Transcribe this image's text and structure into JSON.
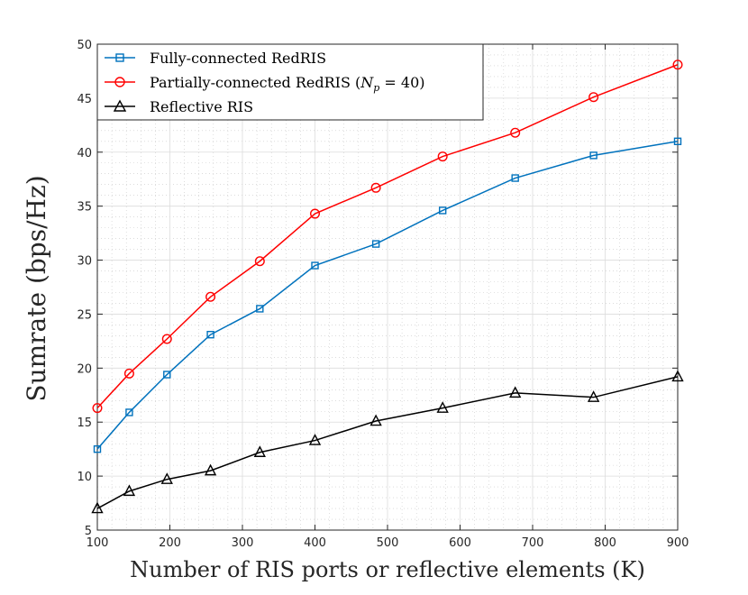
{
  "chart_data": {
    "type": "line",
    "xlabel": "Number of RIS ports or reflective elements (K)",
    "ylabel": "Sumrate (bps/Hz)",
    "xlim": [
      100,
      900
    ],
    "ylim": [
      5,
      50
    ],
    "xticks": [
      100,
      200,
      300,
      400,
      500,
      600,
      700,
      800,
      900
    ],
    "yticks": [
      5,
      10,
      15,
      20,
      25,
      30,
      35,
      40,
      45,
      50
    ],
    "grid": true,
    "minor_grid": true,
    "legend_position": "top-left",
    "x": [
      100,
      144,
      196,
      256,
      324,
      400,
      484,
      576,
      676,
      784,
      900
    ],
    "series": [
      {
        "name": "Fully-connected RedRIS",
        "color": "#0072BD",
        "marker": "square",
        "values": [
          12.5,
          15.9,
          19.4,
          23.1,
          25.5,
          29.5,
          31.5,
          34.6,
          37.6,
          39.7,
          41.0
        ]
      },
      {
        "name": "Partially-connected RedRIS",
        "legend_suffix": " = 40)",
        "legend_math": "N",
        "legend_math_sub": "p",
        "color": "#FF0000",
        "marker": "circle",
        "values": [
          16.3,
          19.5,
          22.7,
          26.6,
          29.9,
          34.3,
          36.7,
          39.6,
          41.8,
          45.1,
          48.1
        ]
      },
      {
        "name": "Reflective RIS",
        "color": "#000000",
        "marker": "triangle",
        "values": [
          7.0,
          8.6,
          9.7,
          10.5,
          12.2,
          13.3,
          15.1,
          16.3,
          17.7,
          17.3,
          19.2
        ]
      }
    ]
  }
}
